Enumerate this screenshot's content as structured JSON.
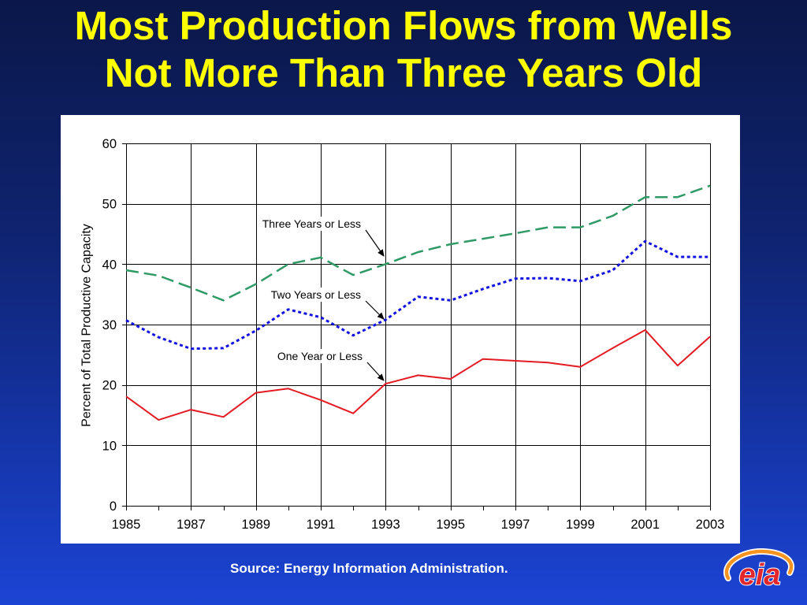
{
  "slide": {
    "source": "Source: Energy Information Administration.",
    "colors": {
      "title": "#ffff00",
      "source_text": "#ffffff",
      "background_top": "#0b1749",
      "background_bottom": "#1c44d4",
      "chart_panel": "#ffffff"
    }
  },
  "logo": {
    "text": "eia",
    "icon": "eia-logo",
    "colors": {
      "lettering": "#e3262b",
      "swoosh": "#f7931e",
      "outline": "#ffffff"
    }
  },
  "chart_data": {
    "type": "line",
    "title": "Most Production Flows from Wells Not More Than Three Years Old",
    "xlabel": "",
    "ylabel": "Percent of Total Productive Capacity",
    "x": [
      1985,
      1986,
      1987,
      1988,
      1989,
      1990,
      1991,
      1992,
      1993,
      1994,
      1995,
      1996,
      1997,
      1998,
      1999,
      2000,
      2001,
      2002,
      2003
    ],
    "xticks": [
      "1985",
      "1987",
      "1989",
      "1991",
      "1993",
      "1995",
      "1997",
      "1999",
      "2001",
      "2003"
    ],
    "yticks": [
      0,
      10,
      20,
      30,
      40,
      50,
      60
    ],
    "xlim": [
      1985,
      2003
    ],
    "ylim": [
      0,
      60
    ],
    "grid": true,
    "legend": "none",
    "series": [
      {
        "name": "Three Years or Less",
        "color": "#2f9a66",
        "line_style": "dashed",
        "values": [
          39.0,
          38.1,
          36.1,
          34.0,
          36.7,
          40.0,
          41.1,
          38.2,
          40.0,
          42.0,
          43.3,
          44.2,
          45.1,
          46.1,
          46.1,
          48.0,
          51.1,
          51.1,
          53.0
        ]
      },
      {
        "name": "Two Years or Less",
        "color": "#1414e0",
        "line_style": "dotted",
        "values": [
          30.7,
          27.9,
          26.0,
          26.1,
          29.0,
          32.5,
          31.2,
          28.2,
          30.8,
          34.6,
          34.0,
          35.9,
          37.6,
          37.7,
          37.2,
          39.0,
          43.8,
          41.2,
          41.2
        ]
      },
      {
        "name": "One Year or Less",
        "color": "#e31b23",
        "line_style": "solid",
        "values": [
          18.1,
          14.2,
          15.9,
          14.7,
          18.7,
          19.4,
          17.5,
          15.3,
          20.2,
          21.6,
          21.0,
          24.3,
          24.0,
          23.7,
          23.0,
          26.1,
          29.1,
          23.2,
          28.0
        ]
      }
    ]
  }
}
